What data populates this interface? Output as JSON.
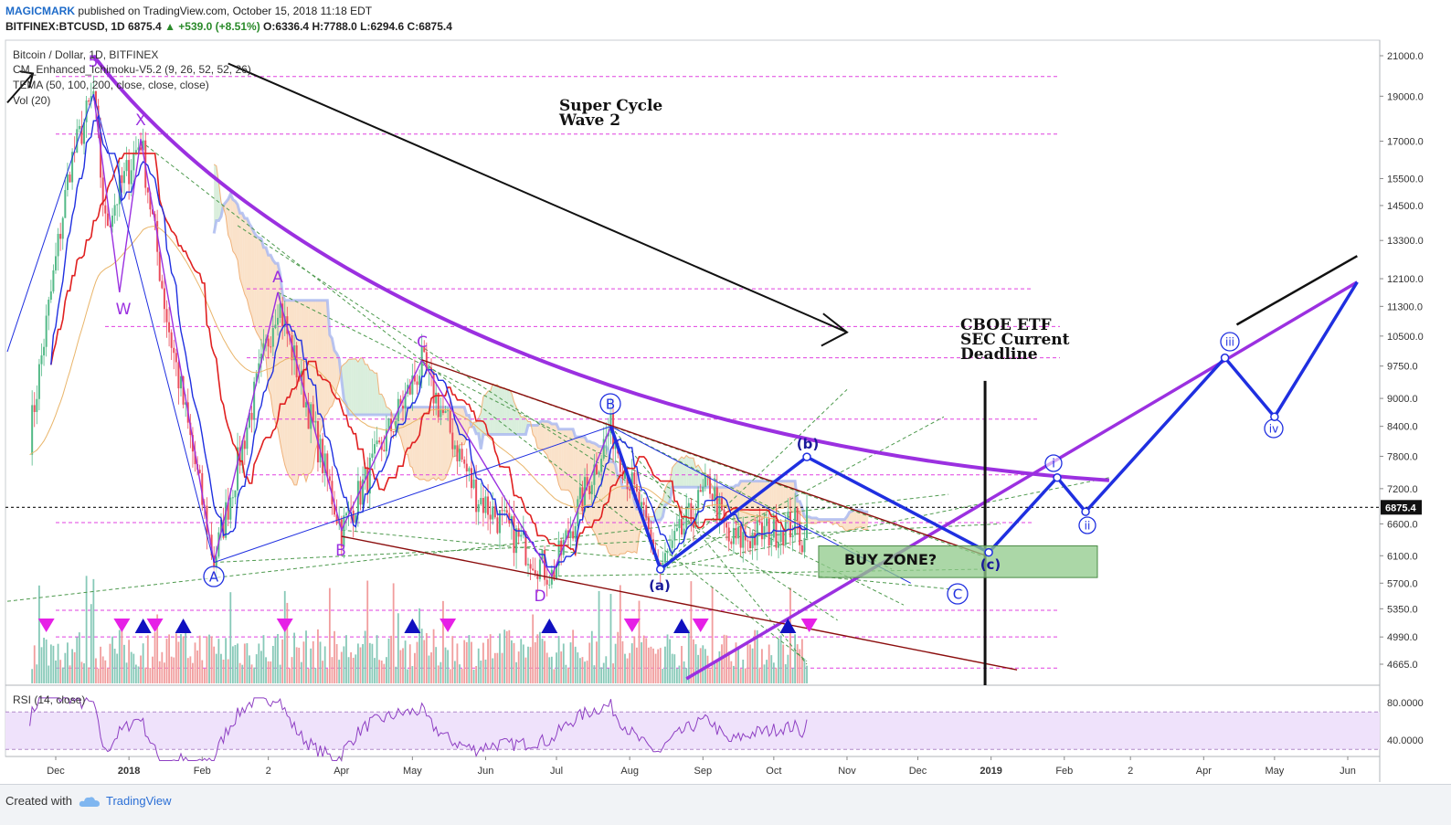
{
  "header": {
    "author": "MAGICMARK",
    "published": "published on TradingView.com, October 15, 2018 11:18 EDT",
    "symbol": "BITFINEX:BTCUSD, 1D",
    "last": "6875.4",
    "change": "+539.0 (+8.51%)",
    "open_lbl": "O:",
    "open": "6336.4",
    "high_lbl": "H:",
    "high": "7788.0",
    "low_lbl": "L:",
    "low": "6294.6",
    "close_lbl": "C:",
    "close": "6875.4"
  },
  "legend": {
    "title": "Bitcoin / Dollar, 1D, BITFINEX",
    "ichimoku": "CM_Enhanced_Ichimoku-V5.2 (9, 26, 52, 52, 26)",
    "tema": "TEMA (50, 100, 200, close, close, close)",
    "vol": "Vol (20)",
    "rsi": "RSI (14, close)"
  },
  "footer": {
    "created": "Created with",
    "brand": "TradingView"
  },
  "colors": {
    "purple": "#9b30e0",
    "blue": "#1f2fe0",
    "black": "#111111",
    "red": "#e02020",
    "darkred": "#8b0d0d",
    "magenta": "#e040e0",
    "buyzone": "#8fc98a"
  },
  "chart_data": {
    "type": "candlestick",
    "yscale": "log",
    "price_axis": [
      21000.0,
      19000.0,
      17000.0,
      15500.0,
      14500.0,
      13300.0,
      12100.0,
      11300.0,
      10500.0,
      9750.0,
      9000.0,
      8400.0,
      7800.0,
      7200.0,
      6600.0,
      6100.0,
      5700.0,
      5350.0,
      4990.0,
      4665.0
    ],
    "price_axis_labels": [
      "21000.0",
      "19000.0",
      "17000.0",
      "15500.0",
      "14500.0",
      "13300.0",
      "12100.0",
      "11300.0",
      "10500.0",
      "9750.0",
      "9000.0",
      "8400.0",
      "7800.0",
      "7200.0",
      "6600.0",
      "6100.0",
      "5700.0",
      "5350.0",
      "4990.0",
      "4665.0"
    ],
    "current_price_label": "6875.4",
    "x_labels": [
      "Dec",
      "2018",
      "Feb",
      "2",
      "Apr",
      "May",
      "Jun",
      "Jul",
      "Aug",
      "Sep",
      "Oct",
      "Nov",
      "Dec",
      "2019",
      "Feb",
      "2",
      "Apr",
      "May",
      "Jun"
    ],
    "rsi_axis_labels": [
      "80.0000",
      "40.0000"
    ],
    "annotations": {
      "super_cycle": [
        "Super Cycle",
        "Wave 2"
      ],
      "cboe": [
        "CBOE ETF",
        "SEC Current",
        "Deadline"
      ],
      "buy_zone": "BUY ZONE?"
    },
    "wave_labels": {
      "w5": "5",
      "x": "X",
      "w": "W",
      "a_circ": "A",
      "a": "A",
      "b": "B",
      "c": "C",
      "d": "D",
      "b_circ": "B",
      "c_circ": "C",
      "a_paren": "(a)",
      "b_paren": "(b)",
      "c_paren": "(c)",
      "i": "i",
      "ii": "ii",
      "iii": "iii",
      "iv": "iv"
    },
    "close_series": [
      [
        "2017-11-20",
        8200
      ],
      [
        "2017-12-07",
        16000
      ],
      [
        "2017-12-17",
        19100
      ],
      [
        "2017-12-22",
        13800
      ],
      [
        "2018-01-06",
        17100
      ],
      [
        "2018-01-17",
        11000
      ],
      [
        "2018-02-06",
        6000
      ],
      [
        "2018-03-05",
        11500
      ],
      [
        "2018-04-01",
        6500
      ],
      [
        "2018-05-05",
        9800
      ],
      [
        "2018-05-28",
        7100
      ],
      [
        "2018-06-29",
        5800
      ],
      [
        "2018-07-24",
        8400
      ],
      [
        "2018-08-14",
        5900
      ],
      [
        "2018-09-04",
        7300
      ],
      [
        "2018-09-12",
        6300
      ],
      [
        "2018-10-10",
        6600
      ],
      [
        "2018-10-14",
        6300
      ],
      [
        "2018-10-15",
        6875.4
      ]
    ],
    "projection_blue": [
      [
        "2018-10-15",
        7788
      ],
      [
        "2018-12-31",
        6150
      ],
      [
        "2019-01-29",
        7400
      ],
      [
        "2019-02-10",
        6800
      ],
      [
        "2019-04-10",
        9950
      ],
      [
        "2019-05-01",
        8600
      ],
      [
        "2019-06-05",
        12000
      ]
    ],
    "rsi": {
      "upper": 70,
      "lower": 30
    }
  }
}
